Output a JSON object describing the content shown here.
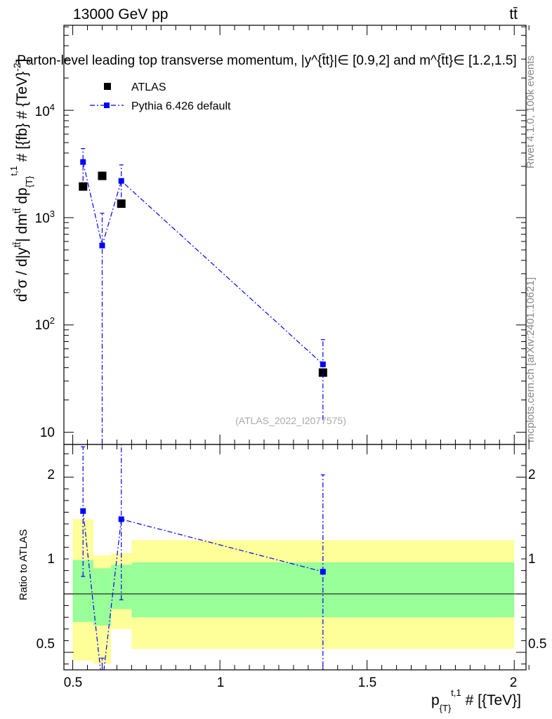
{
  "header": {
    "energy_label": "13000 GeV pp",
    "process_label": "tt̄",
    "plot_title": "Parton-level leading top transverse momentum, |y^{t̄t}|∈ [0.9,2] and m^{t̄t}∈ [1.2,1.5]",
    "rivet_label": "Rivet 4.1.0,  100k events",
    "mcplots_label": "mcplots.cern.ch [arXiv:2401.10621]",
    "analysis_label": "(ATLAS_2022_I2077575)"
  },
  "chart_data": [
    {
      "panel": "main",
      "type": "scatter",
      "title": "Parton-level leading top transverse momentum, |y^{t̄t}|∈ [0.9,2] and m^{t̄t}∈ [1.2,1.5]",
      "ylabel": "d³σ / d|y^{t̄t}| dm^{t̄t} dp_{T}^{t,1} # [{fb} # {TeV}⁻²]",
      "yscale": "log",
      "ylim": [
        7.7,
        62000
      ],
      "xlim": [
        0.47,
        2.04
      ],
      "ytick_labels": [
        "10",
        "10²",
        "10³",
        "10⁴"
      ],
      "legend": {
        "position": "top-left",
        "entries": [
          "ATLAS",
          "Pythia 6.426 default"
        ]
      },
      "series": [
        {
          "name": "ATLAS",
          "color": "#000000",
          "marker": "square",
          "x": [
            0.535,
            0.6,
            0.665,
            1.35
          ],
          "y": [
            1950,
            2450,
            1350,
            36
          ]
        },
        {
          "name": "Pythia 6.426 default",
          "color": "#0000ff",
          "marker": "square",
          "line": "dash-dot",
          "x": [
            0.535,
            0.6,
            0.665,
            1.35
          ],
          "y": [
            3300,
            550,
            2200,
            43
          ],
          "y_low": [
            2200,
            5,
            1550,
            13
          ],
          "y_high": [
            4400,
            1100,
            3100,
            73
          ]
        }
      ]
    },
    {
      "panel": "ratio",
      "type": "line",
      "ylabel": "Ratio to ATLAS",
      "xlabel": "p_{T}^{t,1} # [{TeV}]",
      "ylim": [
        0.35,
        2.28
      ],
      "xlim": [
        0.47,
        2.04
      ],
      "xtick_labels": [
        "0.5",
        "1",
        "1.5",
        "2"
      ],
      "ytick_labels": [
        "0.5",
        "1",
        "2"
      ],
      "bands": {
        "x_edges": [
          0.5,
          0.57,
          0.63,
          0.7,
          2.0
        ],
        "green_low": [
          0.76,
          0.73,
          0.87,
          0.8
        ],
        "green_high": [
          1.29,
          1.22,
          1.25,
          1.27
        ],
        "yellow_low": [
          0.43,
          0.4,
          0.7,
          0.53
        ],
        "yellow_high": [
          1.64,
          1.33,
          1.35,
          1.46
        ]
      },
      "series": [
        {
          "name": "Pythia 6.426 default",
          "color": "#0000ff",
          "x": [
            0.535,
            0.6,
            0.665,
            1.35
          ],
          "y": [
            1.71,
            0.22,
            1.64,
            1.19
          ],
          "y_low": [
            1.15,
            0.1,
            0.95,
            0.2
          ],
          "y_high": [
            2.26,
            0.45,
            2.3,
            2.02
          ]
        }
      ]
    }
  ]
}
